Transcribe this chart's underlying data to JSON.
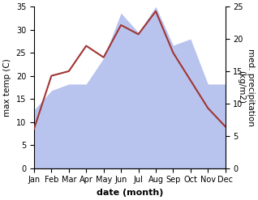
{
  "months": [
    1,
    2,
    3,
    4,
    5,
    6,
    7,
    8,
    9,
    10,
    11,
    12
  ],
  "month_labels": [
    "Jan",
    "Feb",
    "Mar",
    "Apr",
    "May",
    "Jun",
    "Jul",
    "Aug",
    "Sep",
    "Oct",
    "Nov",
    "Dec"
  ],
  "temp": [
    8.5,
    20.0,
    21.0,
    26.5,
    24.0,
    31.0,
    29.0,
    34.0,
    25.0,
    19.0,
    13.0,
    9.0
  ],
  "precip": [
    9.0,
    12.0,
    13.0,
    13.0,
    17.0,
    24.0,
    21.0,
    25.0,
    19.0,
    20.0,
    13.0,
    13.0
  ],
  "temp_color": "#a03535",
  "precip_color": "#b8c4ee",
  "ylim_temp": [
    0,
    35
  ],
  "ylim_precip": [
    0,
    25
  ],
  "yticks_temp": [
    0,
    5,
    10,
    15,
    20,
    25,
    30,
    35
  ],
  "yticks_precip": [
    0,
    5,
    10,
    15,
    20,
    25
  ],
  "xlabel": "date (month)",
  "ylabel_left": "max temp (C)",
  "ylabel_right": "med. precipitation\n(kg/m2)",
  "bg_color": "#ffffff",
  "line_width": 1.5,
  "tick_fontsize": 7,
  "label_fontsize": 7.5,
  "xlabel_fontsize": 8
}
